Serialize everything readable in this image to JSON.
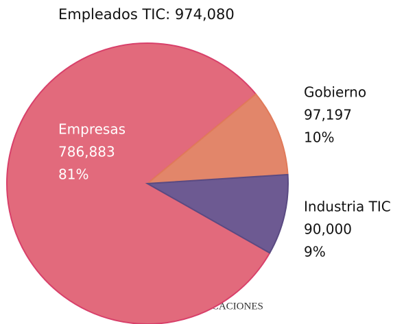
{
  "chart_data": {
    "type": "pie",
    "title": "Empleados TIC: 974,080",
    "categories": [
      "Empresas",
      "Gobierno",
      "Industria TIC"
    ],
    "values": [
      786883,
      97197,
      90000
    ],
    "value_labels": [
      "786,883",
      "97,197",
      "90,000"
    ],
    "percent_labels": [
      "81%",
      "10%",
      "9%"
    ],
    "colors": [
      "#e26a7c",
      "#e2866a",
      "#6d5a92"
    ],
    "annotation": "NICACIONES"
  }
}
